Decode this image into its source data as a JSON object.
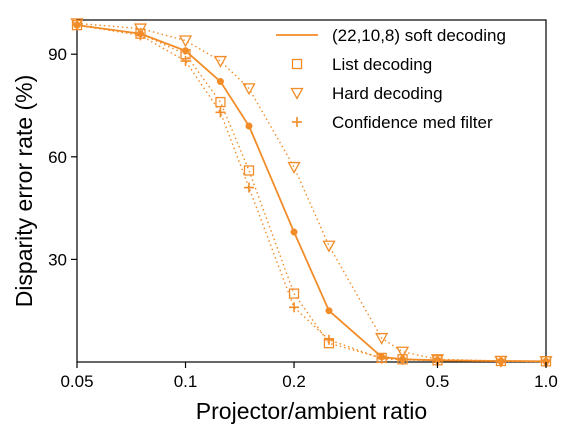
{
  "chart_data": {
    "type": "line",
    "title": "",
    "xlabel": "Projector/ambient ratio",
    "ylabel": "Disparity error rate (%)",
    "xscale": "log",
    "xlim": [
      0.05,
      1.0
    ],
    "ylim": [
      0,
      100
    ],
    "xticks": [
      {
        "value": 0.05,
        "label": "0.05"
      },
      {
        "value": 0.1,
        "label": "0.1"
      },
      {
        "value": 0.2,
        "label": "0.2"
      },
      {
        "value": 0.5,
        "label": "0.5"
      },
      {
        "value": 1.0,
        "label": "1.0"
      }
    ],
    "yticks": [
      {
        "value": 30,
        "label": "30"
      },
      {
        "value": 60,
        "label": "60"
      },
      {
        "value": 90,
        "label": "90"
      }
    ],
    "grid": false,
    "legend_position": "top-right",
    "color": "#f28c28",
    "series": [
      {
        "name": "(22,10,8) soft decoding",
        "line": "solid",
        "marker": "dot",
        "x": [
          0.05,
          0.075,
          0.1,
          0.125,
          0.15,
          0.2,
          0.25,
          0.35,
          0.4,
          0.5,
          0.75,
          1.0
        ],
        "y": [
          98.5,
          96,
          91,
          82,
          69,
          38,
          15,
          1.5,
          0.8,
          0.5,
          0.3,
          0.2
        ]
      },
      {
        "name": "List decoding",
        "line": "dotted",
        "marker": "square",
        "x": [
          0.05,
          0.075,
          0.1,
          0.125,
          0.15,
          0.2,
          0.25,
          0.35,
          0.4,
          0.5,
          0.75,
          1.0
        ],
        "y": [
          98.5,
          96,
          90,
          76,
          56,
          20,
          5.5,
          1.2,
          0.8,
          0.5,
          0.3,
          0.2
        ]
      },
      {
        "name": "Hard decoding",
        "line": "dotted",
        "marker": "triangle-down",
        "x": [
          0.05,
          0.075,
          0.1,
          0.125,
          0.15,
          0.2,
          0.25,
          0.35,
          0.4,
          0.5,
          0.75,
          1.0
        ],
        "y": [
          99,
          97.5,
          94,
          88,
          80,
          57,
          34,
          7,
          3,
          0.8,
          0.3,
          0.2
        ]
      },
      {
        "name": "Confidence med filter",
        "line": "dotted",
        "marker": "plus",
        "x": [
          0.05,
          0.075,
          0.1,
          0.125,
          0.15,
          0.2,
          0.25,
          0.35,
          0.4,
          0.5,
          0.75,
          1.0
        ],
        "y": [
          98.5,
          95.5,
          88,
          73,
          51,
          16,
          6.5,
          1.0,
          0.6,
          0.4,
          0.2,
          0.1
        ]
      }
    ]
  }
}
